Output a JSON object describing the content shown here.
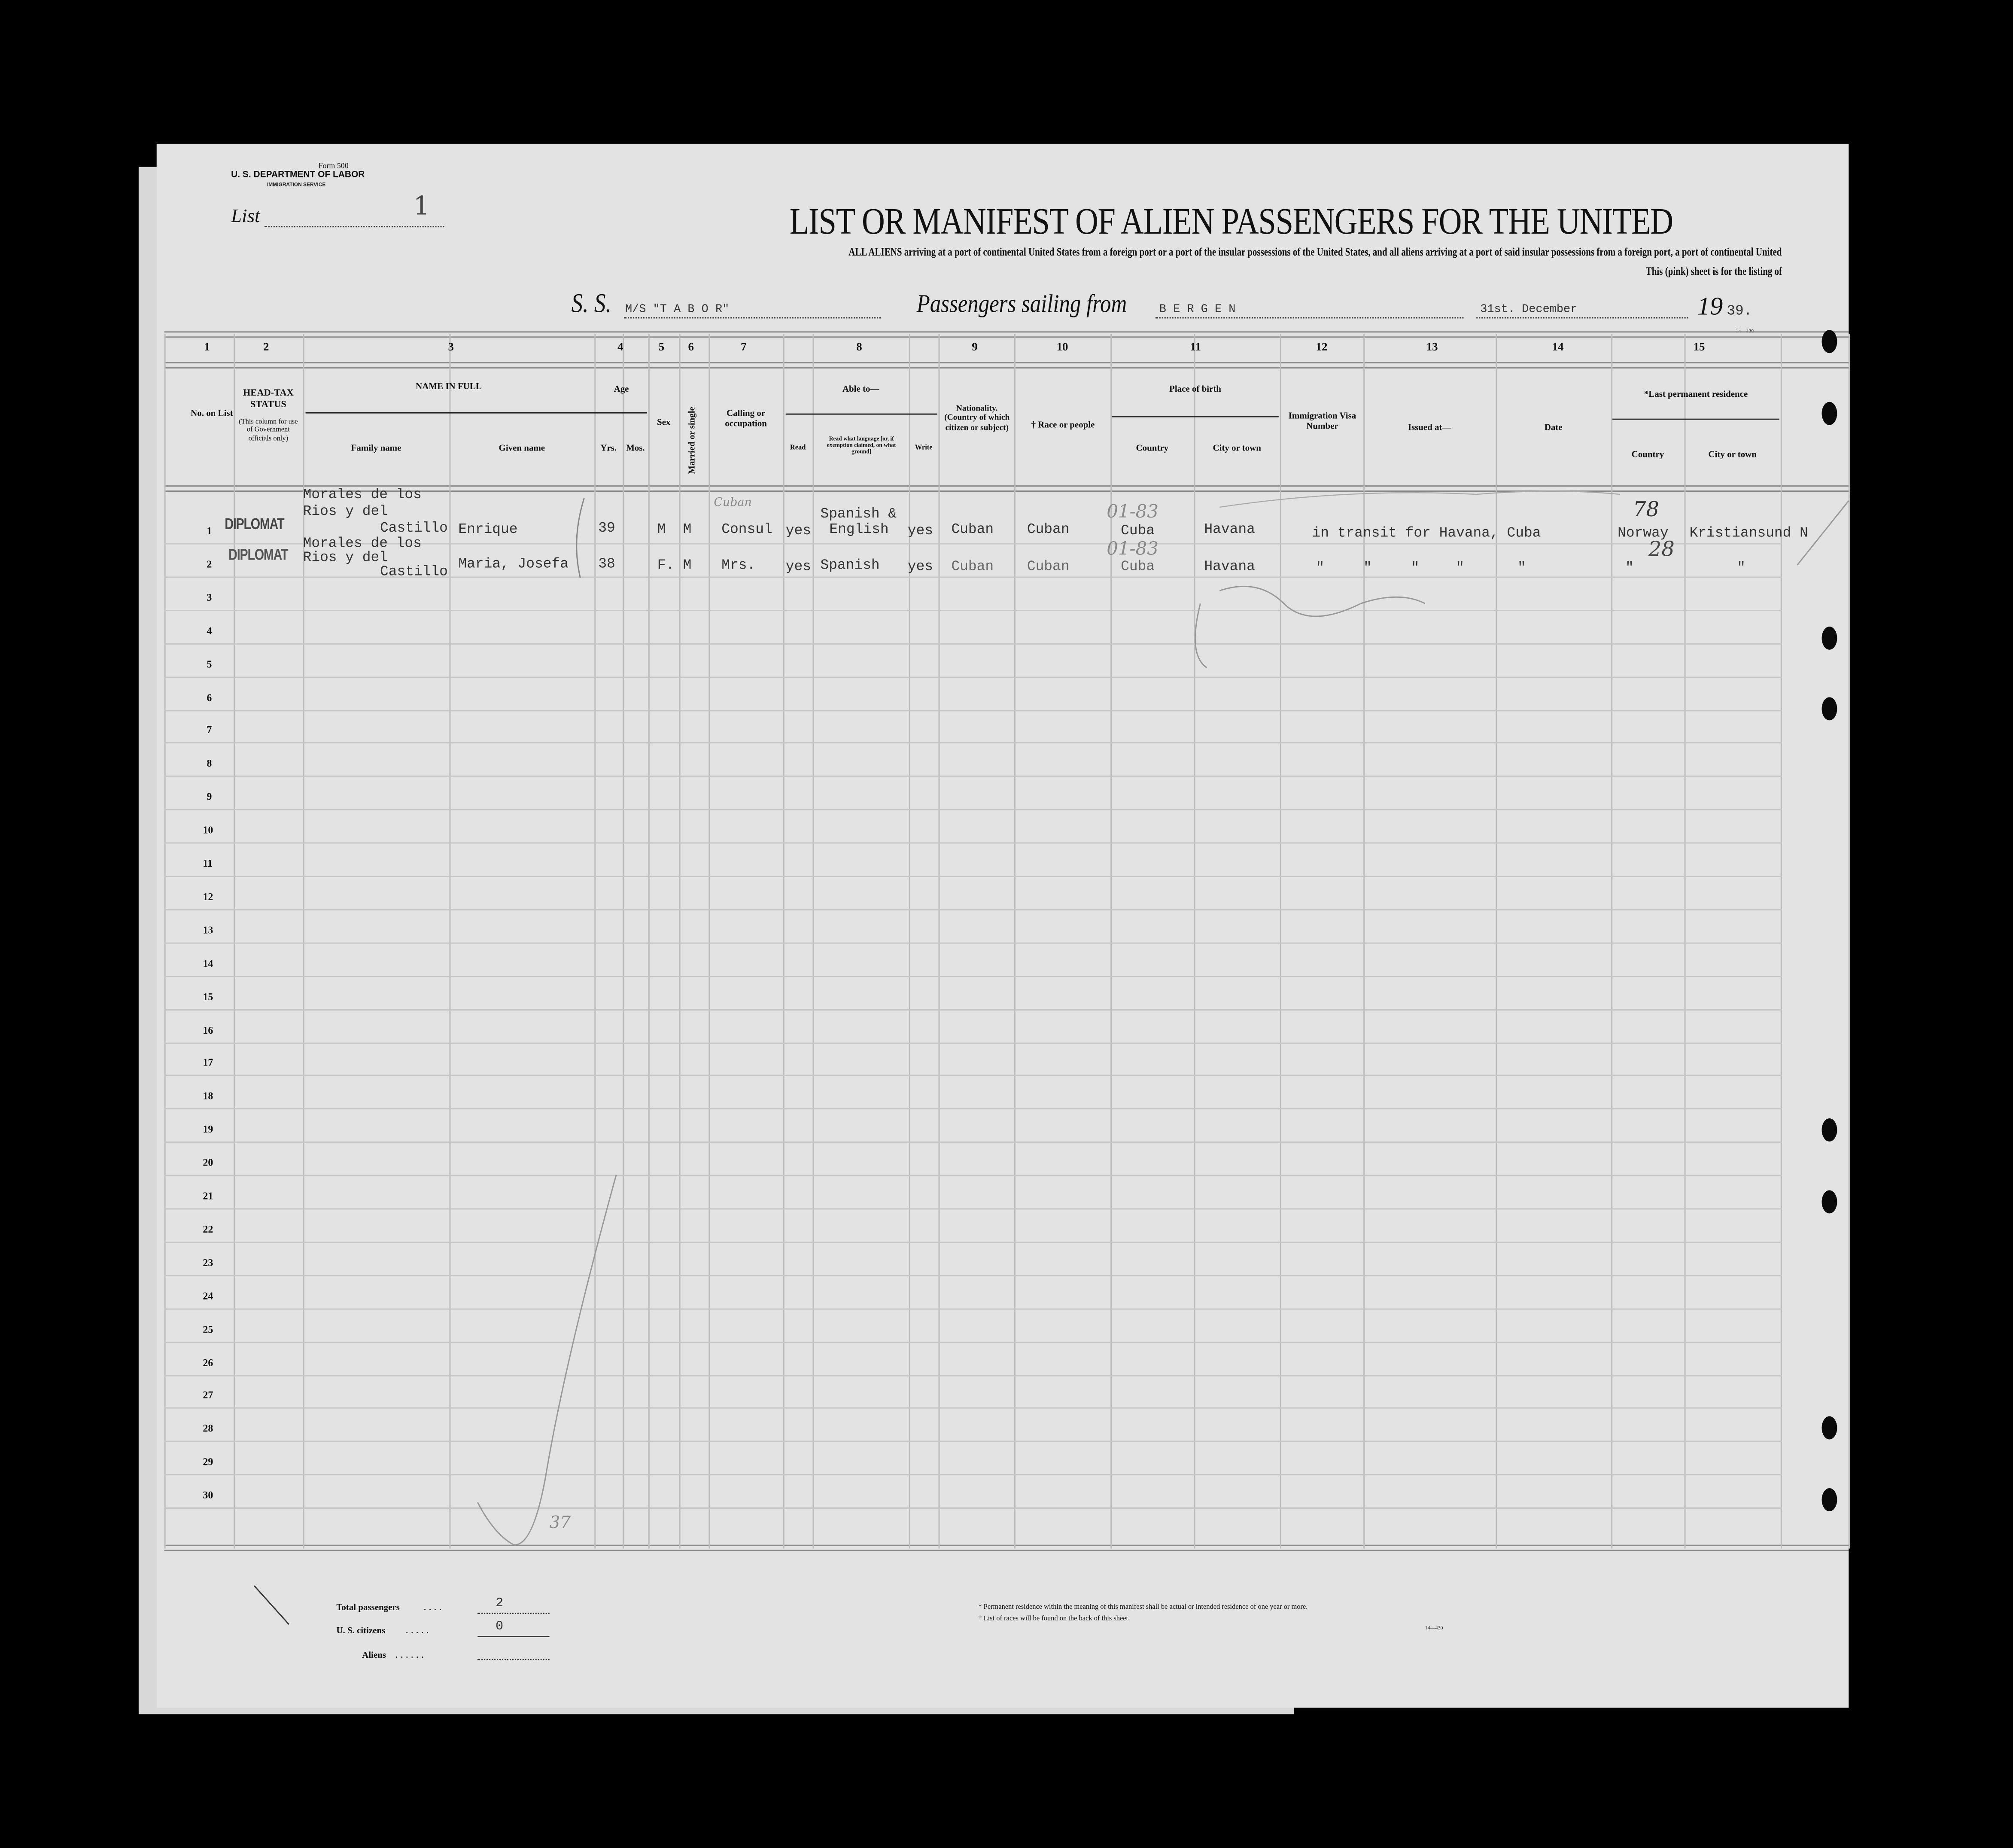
{
  "form": {
    "form_number": "Form 500",
    "department": "U. S. DEPARTMENT OF LABOR",
    "service": "IMMIGRATION SERVICE",
    "list_label": "List",
    "list_value": "1"
  },
  "title": "LIST OR MANIFEST OF ALIEN PASSENGERS FOR THE UNITED",
  "subtitle_lead": "ALL ALIENS",
  "subtitle": "arriving at a port of continental United States from a foreign port or a port of the insular possessions of the United States, and all aliens arriving at a port of said insular possessions from a foreign port, a port of continental United",
  "subtitle2": "This (pink) sheet is for the listing of",
  "voyage": {
    "ss_label": "S. S.",
    "ship": "M/S \"T A B O R\"",
    "sailing_label": "Passengers sailing from",
    "port": "B E R G E N",
    "date": "31st. December",
    "year_prefix": "19",
    "year_suffix": "39."
  },
  "form_code_top": "14—430",
  "column_numbers": [
    "1",
    "2",
    "3",
    "4",
    "5",
    "6",
    "7",
    "8",
    "9",
    "10",
    "11",
    "12",
    "13",
    "14",
    "15"
  ],
  "headers": {
    "no_on_list": "No. on List",
    "head_tax": "HEAD-TAX STATUS",
    "head_tax_note": "(This column for use of Government officials only)",
    "name_in_full": "NAME IN FULL",
    "family_name": "Family name",
    "given_name": "Given name",
    "age": "Age",
    "yrs": "Yrs.",
    "mos": "Mos.",
    "sex": "Sex",
    "married": "Married or single",
    "calling": "Calling or occupation",
    "able_to": "Able to—",
    "read": "Read",
    "read_language": "Read what language [or, if exemption claimed, on what ground]",
    "write": "Write",
    "nationality": "Nationality. (Country of which citizen or subject)",
    "race": "† Race or people",
    "place_of_birth": "Place of birth",
    "birth_country": "Country",
    "birth_city": "City or town",
    "visa_number": "Immigration Visa Number",
    "issued_at": "Issued at—",
    "date": "Date",
    "last_residence": "*Last permanent residence",
    "res_country": "Country",
    "res_city": "City or town"
  },
  "passengers": [
    {
      "no": "1",
      "head_tax": "DIPLOMAT",
      "family_name": [
        "Morales de los",
        "Rios y del",
        "Castillo"
      ],
      "given_name": "Enrique",
      "age_yrs": "39",
      "sex": "M",
      "married": "M",
      "occupation": "Consul",
      "read": "yes",
      "language": [
        "Spanish &",
        "English"
      ],
      "write": "yes",
      "nationality": "Cuban",
      "race": "Cuban",
      "birth_country": "Cuba",
      "birth_city": "Havana",
      "visa_note": "in transit for Havana, Cuba",
      "res_country": "Norway",
      "res_city": "Kristiansund N"
    },
    {
      "no": "2",
      "head_tax": "DIPLOMAT",
      "family_name": [
        "Morales de los",
        "Rios y del",
        "Castillo"
      ],
      "given_name": "Maria, Josefa",
      "age_yrs": "38",
      "sex": "F.",
      "married": "M",
      "occupation": "Mrs.",
      "read": "yes",
      "language": [
        "Spanish"
      ],
      "write": "yes",
      "nationality": "Cuban",
      "race": "Cuban",
      "birth_country": "Cuba",
      "birth_city": "Havana",
      "ditto": "\"",
      "res_country": "\"",
      "res_city": "\""
    }
  ],
  "row_numbers": [
    "1",
    "2",
    "3",
    "4",
    "5",
    "6",
    "7",
    "8",
    "9",
    "10",
    "11",
    "12",
    "13",
    "14",
    "15",
    "16",
    "17",
    "18",
    "19",
    "20",
    "21",
    "22",
    "23",
    "24",
    "25",
    "26",
    "27",
    "28",
    "29",
    "30"
  ],
  "handwritten": {
    "occupation_note": "Cuban",
    "birth_code_1": "01-83",
    "birth_code_2": "01-83",
    "res_code_1": "78",
    "res_code_2": "28",
    "tally": "37"
  },
  "totals": {
    "total_label": "Total passengers",
    "total_value": "2",
    "citizens_label": "U. S. citizens",
    "citizens_value": "0",
    "aliens_label": "Aliens",
    "aliens_value": ""
  },
  "footnotes": [
    "* Permanent residence within the meaning of this manifest shall be actual or intended residence of one year or more.",
    "† List of races will be found on the back of this sheet."
  ],
  "form_code_bottom": "14—430"
}
